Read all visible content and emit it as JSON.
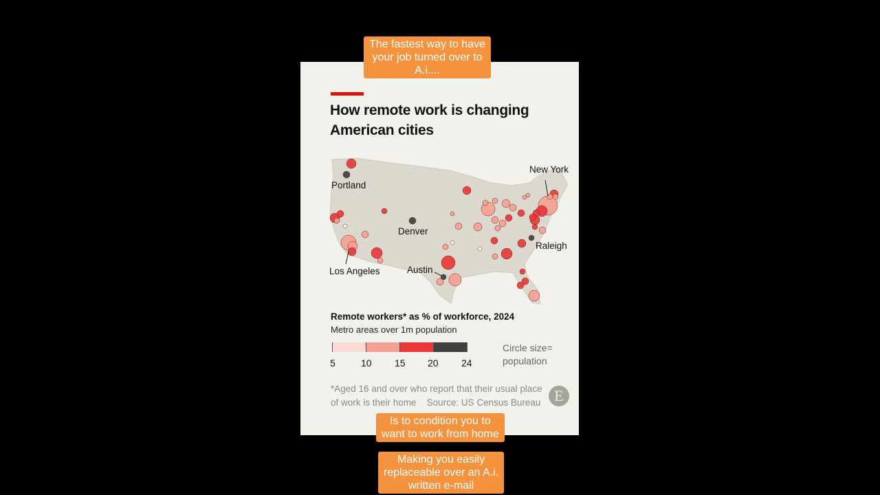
{
  "captions": {
    "top": [
      "The fastest way to have",
      "your job turned over to",
      "A.i...."
    ],
    "middle": [
      "Is to condition you to",
      "want to work from home"
    ],
    "bottom": [
      "Making you easily",
      "replaceable over an A.i.",
      "written e-mail"
    ]
  },
  "chart": {
    "title": "How remote work is changing American cities",
    "city_labels": [
      "Portland",
      "Denver",
      "Los Angeles",
      "Austin",
      "New York",
      "Raleigh"
    ],
    "legend": {
      "title": "Remote workers* as % of workforce, 2024",
      "subtitle": "Metro areas over 1m population",
      "bins": [
        "5",
        "10",
        "15",
        "20",
        "24"
      ],
      "bin_colors": [
        "#fbd9d6",
        "#f4a193",
        "#e8383a",
        "#404040"
      ],
      "size_note_1": "Circle size=",
      "size_note_2": "population"
    },
    "footnote": "*Aged 16 and over who report that their usual place of work is their home",
    "source": "Source: US Census Bureau",
    "logo_letter": "E",
    "colors": {
      "accent": "#e3120b",
      "land": "#dcd8ce",
      "background": "#f3f1ec"
    }
  }
}
